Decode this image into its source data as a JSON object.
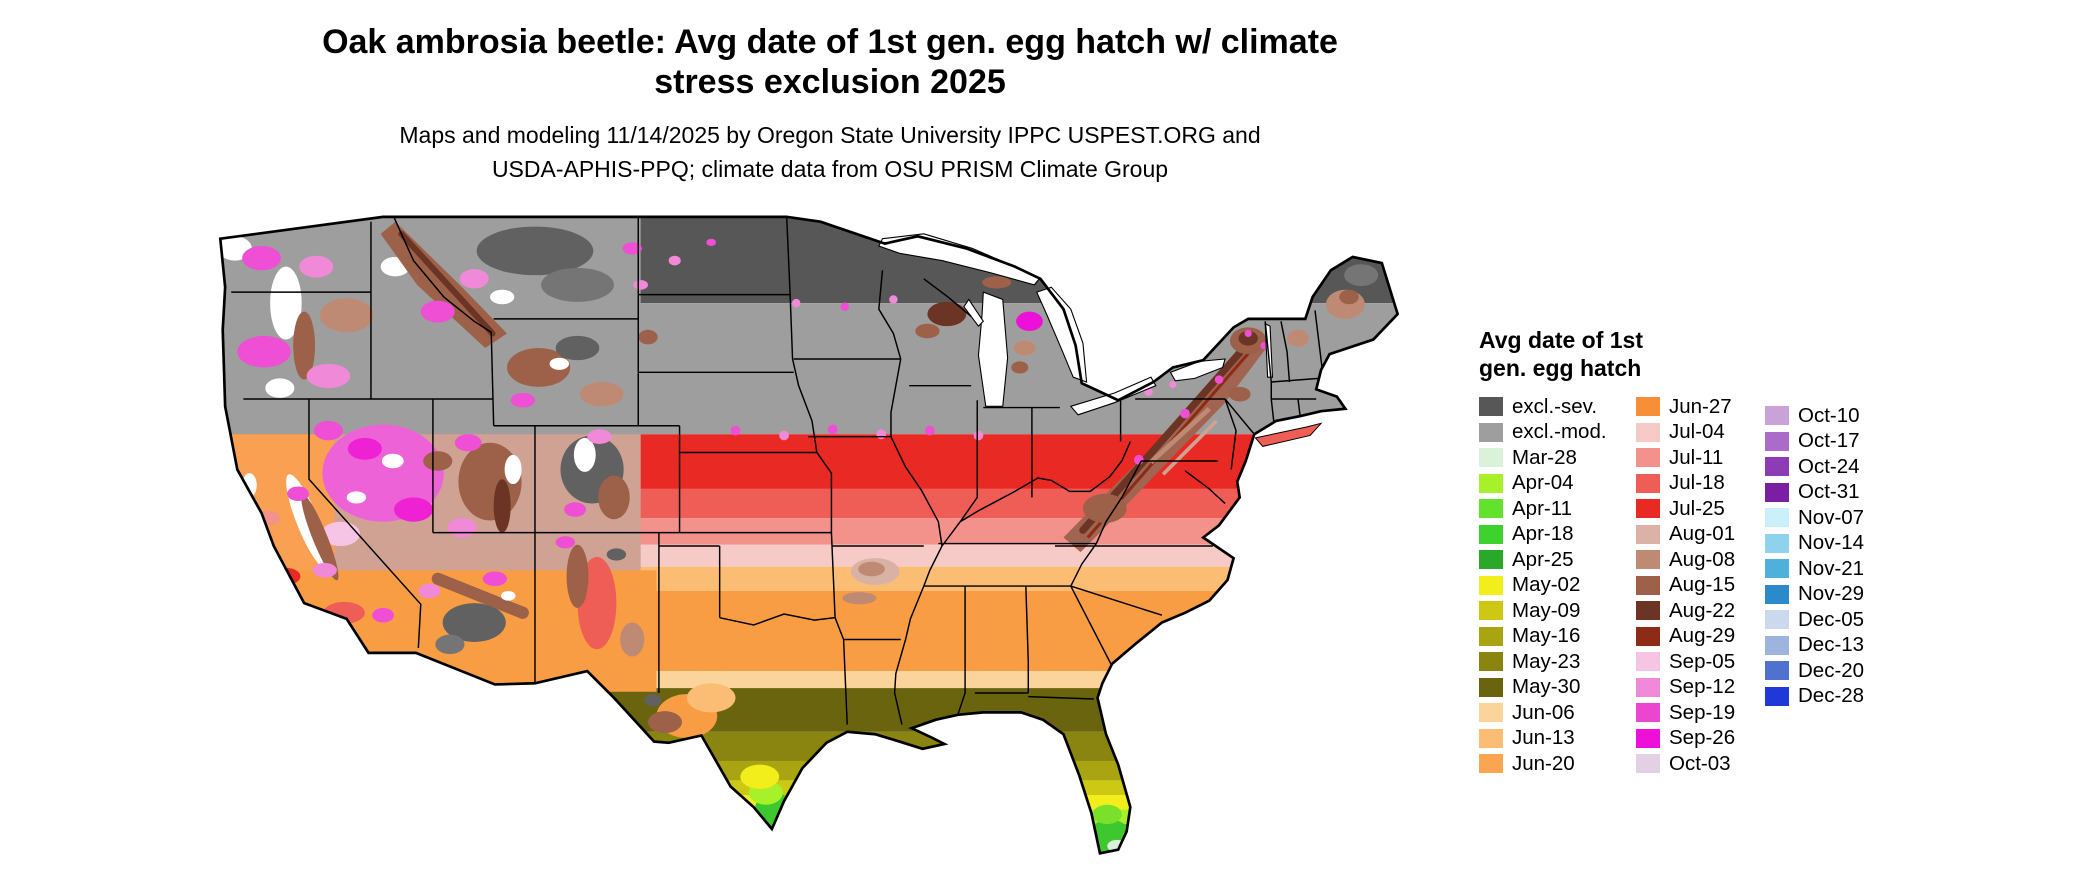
{
  "title": {
    "line1": "Oak ambrosia beetle: Avg date of 1st gen. egg hatch w/ climate",
    "line2": "stress exclusion 2025"
  },
  "subtitle": {
    "line1": "Maps and modeling 11/14/2025 by Oregon State University IPPC USPEST.ORG and",
    "line2": "USDA-APHIS-PPQ; climate data from OSU PRISM Climate Group"
  },
  "legend": {
    "title_line1": "Avg date of 1st",
    "title_line2": "gen. egg hatch",
    "columns": [
      [
        {
          "label": "excl.-sev.",
          "color": "#575757"
        },
        {
          "label": "excl.-mod.",
          "color": "#9e9e9e"
        },
        {
          "label": "Mar-28",
          "color": "#d9f2d9"
        },
        {
          "label": "Apr-04",
          "color": "#a8f02a"
        },
        {
          "label": "Apr-11",
          "color": "#62e22c"
        },
        {
          "label": "Apr-18",
          "color": "#3ed32c"
        },
        {
          "label": "Apr-25",
          "color": "#2aa82a"
        },
        {
          "label": "May-02",
          "color": "#f2ee1c"
        },
        {
          "label": "May-09",
          "color": "#ccc814"
        },
        {
          "label": "May-16",
          "color": "#a8a412"
        },
        {
          "label": "May-23",
          "color": "#8a8410"
        },
        {
          "label": "May-30",
          "color": "#6a640e"
        },
        {
          "label": "Jun-06",
          "color": "#fbd49c"
        },
        {
          "label": "Jun-13",
          "color": "#fbbd74"
        },
        {
          "label": "Jun-20",
          "color": "#faa551"
        }
      ],
      [
        {
          "label": "Jun-27",
          "color": "#f98e38"
        },
        {
          "label": "Jul-04",
          "color": "#f6cbc7"
        },
        {
          "label": "Jul-11",
          "color": "#f2928a"
        },
        {
          "label": "Jul-18",
          "color": "#ee5e56"
        },
        {
          "label": "Jul-25",
          "color": "#e92a24"
        },
        {
          "label": "Aug-01",
          "color": "#dab2a6"
        },
        {
          "label": "Aug-08",
          "color": "#bf8a74"
        },
        {
          "label": "Aug-15",
          "color": "#9c6148"
        },
        {
          "label": "Aug-22",
          "color": "#6b3424"
        },
        {
          "label": "Aug-29",
          "color": "#8c2c16"
        },
        {
          "label": "Sep-05",
          "color": "#f6c4e4"
        },
        {
          "label": "Sep-12",
          "color": "#f08ad8"
        },
        {
          "label": "Sep-19",
          "color": "#ec46d0"
        },
        {
          "label": "Sep-26",
          "color": "#ee10d8"
        },
        {
          "label": "Oct-03",
          "color": "#e4d0e4"
        }
      ],
      [
        {
          "label": "Oct-10",
          "color": "#c9a2d8"
        },
        {
          "label": "Oct-17",
          "color": "#aa6cc8"
        },
        {
          "label": "Oct-24",
          "color": "#8e3cb6"
        },
        {
          "label": "Oct-31",
          "color": "#7a1ea4"
        },
        {
          "label": "Nov-07",
          "color": "#ccf0fa"
        },
        {
          "label": "Nov-14",
          "color": "#8ed2ee"
        },
        {
          "label": "Nov-21",
          "color": "#50b0dc"
        },
        {
          "label": "Nov-29",
          "color": "#2a8aca"
        },
        {
          "label": "Dec-05",
          "color": "#ccd8ec"
        },
        {
          "label": "Dec-13",
          "color": "#9cb4de"
        },
        {
          "label": "Dec-20",
          "color": "#4f72ce"
        },
        {
          "label": "Dec-28",
          "color": "#2038d8"
        }
      ]
    ]
  }
}
